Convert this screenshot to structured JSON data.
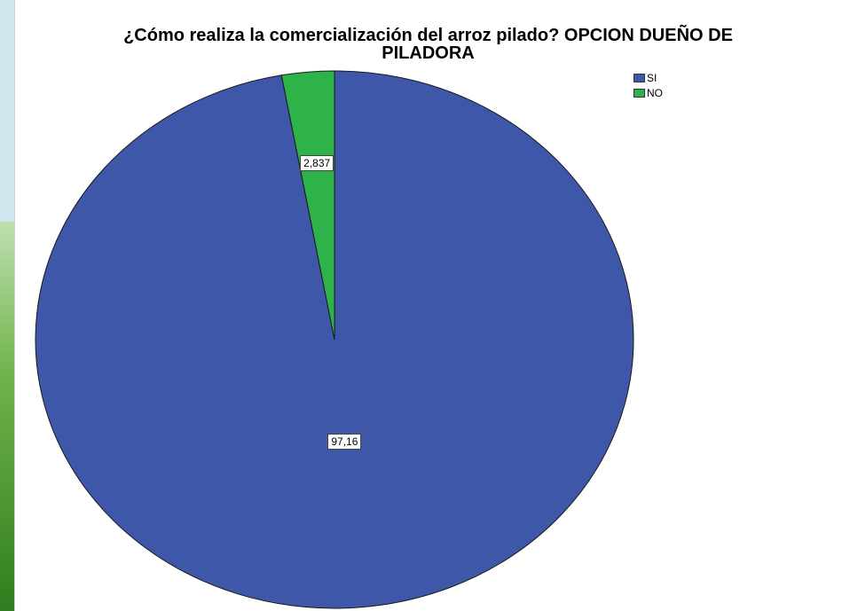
{
  "chart_data": {
    "type": "pie",
    "title": "¿Cómo realiza la comercialización del arroz pilado? OPCION DUEÑO DE PILADORA",
    "title_line1": "¿Cómo realiza la comercialización del arroz pilado? OPCION DUEÑO DE",
    "title_line2": "PILADORA",
    "categories": [
      "SI",
      "NO"
    ],
    "values": [
      97.163,
      2.837
    ],
    "labels": [
      "97,16",
      "2,837"
    ],
    "colors": [
      "#3f57a8",
      "#2db34a"
    ],
    "legend_position": "top-right",
    "start": "top",
    "direction": "clockwise"
  }
}
